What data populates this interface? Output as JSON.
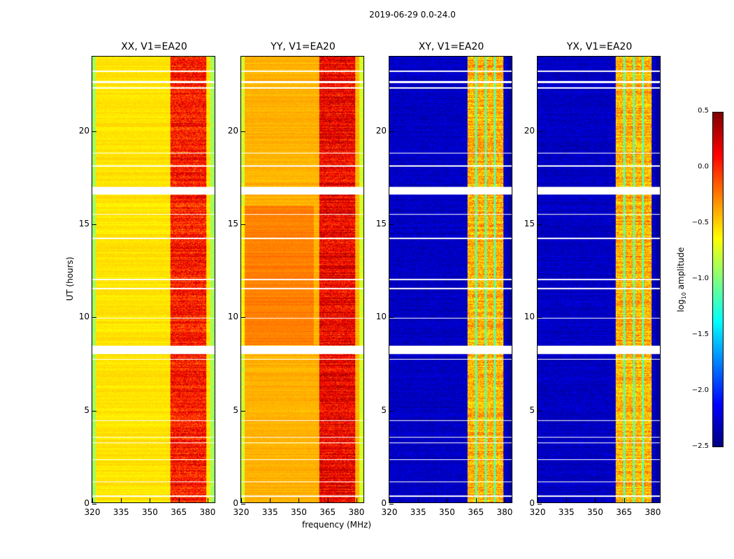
{
  "suptitle": "2019-06-29 0.0-24.0",
  "chart_data": {
    "type": "heatmap",
    "xlabel": "frequency (MHz)",
    "ylabel": "UT (hours)",
    "xlim": [
      320,
      384.4
    ],
    "ylim": [
      0,
      24
    ],
    "xticks": [
      "320",
      "335",
      "350",
      "365",
      "380"
    ],
    "xtick_values": [
      320,
      335,
      350,
      365,
      380
    ],
    "yticks": [
      "0",
      "5",
      "10",
      "15",
      "20"
    ],
    "ytick_values": [
      0,
      5,
      10,
      15,
      20
    ],
    "colorbar": {
      "label": "log10 amplitude",
      "label_main": "log",
      "label_sub": "10",
      "label_rest": " amplitude",
      "range": [
        -2.5,
        0.5
      ],
      "ticks": [
        "0.5",
        "0.0",
        "−0.5",
        "−1.0",
        "−1.5",
        "−2.0",
        "−2.5"
      ],
      "tick_values": [
        0.5,
        0.0,
        -0.5,
        -1.0,
        -1.5,
        -2.0,
        -2.5
      ],
      "colormap": "jet"
    },
    "band_mhz": [
      361,
      380
    ],
    "flagged_hours": [
      [
        0.3,
        0.4
      ],
      [
        1.1,
        1.15
      ],
      [
        2.3,
        2.35
      ],
      [
        3.2,
        3.25
      ],
      [
        3.5,
        3.55
      ],
      [
        4.4,
        4.45
      ],
      [
        7.7,
        7.75
      ],
      [
        8.0,
        8.45
      ],
      [
        9.9,
        9.95
      ],
      [
        11.5,
        11.55
      ],
      [
        12.0,
        12.05
      ],
      [
        14.2,
        14.25
      ],
      [
        15.5,
        15.55
      ],
      [
        16.6,
        17.0
      ],
      [
        18.1,
        18.15
      ],
      [
        18.8,
        18.85
      ],
      [
        22.3,
        22.35
      ],
      [
        22.6,
        22.7
      ],
      [
        23.2,
        23.25
      ]
    ],
    "panels": [
      {
        "title": "XX, V1=EA20",
        "offband_level": -0.55,
        "band_level": 0.05,
        "cross": false
      },
      {
        "title": "YY, V1=EA20",
        "offband_level": -0.4,
        "band_level": 0.15,
        "cross": false
      },
      {
        "title": "XY, V1=EA20",
        "offband_level": -2.3,
        "band_level": -0.4,
        "cross": true
      },
      {
        "title": "YX, V1=EA20",
        "offband_level": -2.3,
        "band_level": -0.4,
        "cross": true
      }
    ]
  }
}
